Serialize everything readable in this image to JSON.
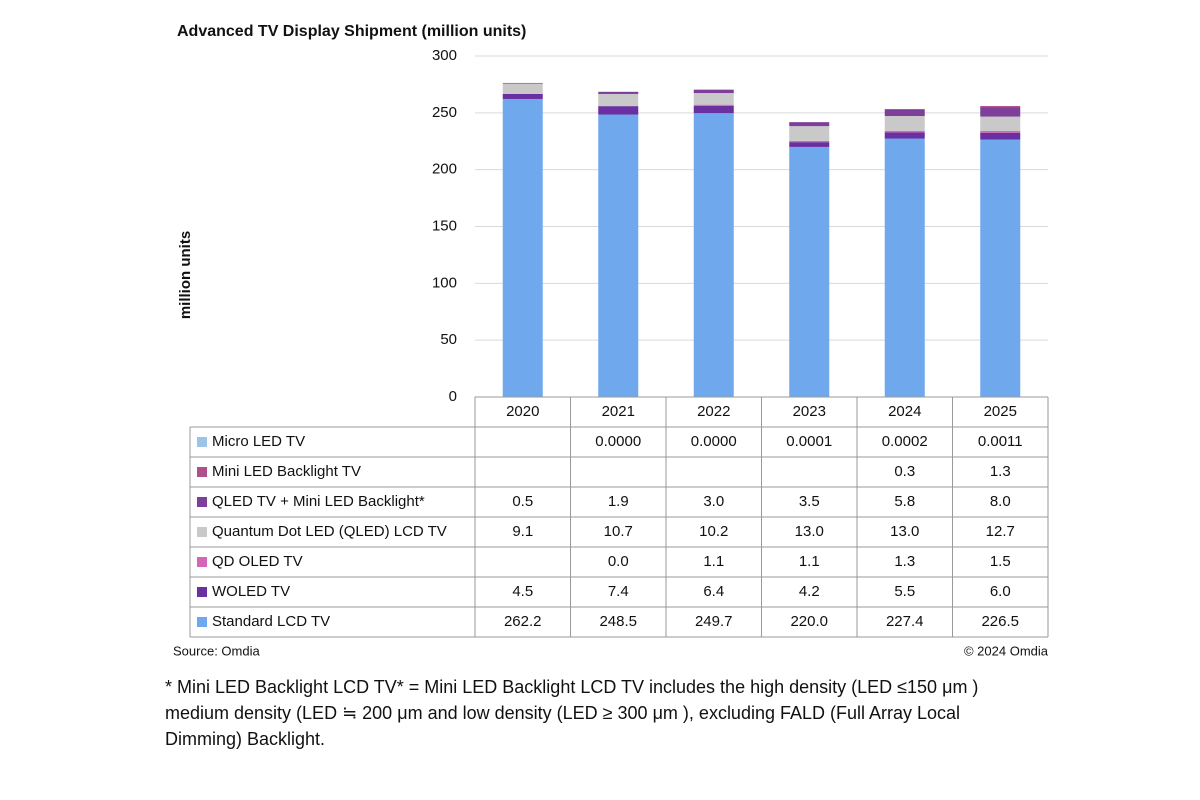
{
  "chart_data": {
    "type": "stacked-bar-table",
    "title": "Advanced TV Display Shipment (million units)",
    "y_label": "million  units",
    "categories": [
      "2020",
      "2021",
      "2022",
      "2023",
      "2024",
      "2025"
    ],
    "ylim": [
      0,
      300
    ],
    "yticks": [
      0,
      50,
      100,
      150,
      200,
      250,
      300
    ],
    "grid": true,
    "series": [
      {
        "name": "Standard LCD TV",
        "color": "#6fa8ec",
        "values": [
          262.2,
          248.5,
          249.7,
          220.0,
          227.4,
          226.5
        ],
        "value_labels": [
          "262.2",
          "248.5",
          "249.7",
          "220.0",
          "227.4",
          "226.5"
        ]
      },
      {
        "name": "WOLED TV",
        "color": "#6a2fa0",
        "values": [
          4.5,
          7.4,
          6.4,
          4.2,
          5.5,
          6.0
        ],
        "value_labels": [
          "4.5",
          "7.4",
          "6.4",
          "4.2",
          "5.5",
          "6.0"
        ]
      },
      {
        "name": "QD OLED TV",
        "color": "#d466b8",
        "values": [
          null,
          0,
          1.1,
          1.1,
          1.3,
          1.5
        ],
        "value_labels": [
          null,
          "0.0",
          "1.1",
          "1.1",
          "1.3",
          "1.5"
        ]
      },
      {
        "name": "Quantum Dot LED (QLED) LCD TV",
        "color": "#c9c9c9",
        "values": [
          9.1,
          10.7,
          10.2,
          13.0,
          13.0,
          12.7
        ],
        "value_labels": [
          "9.1",
          "10.7",
          "10.2",
          "13.0",
          "13.0",
          "12.7"
        ]
      },
      {
        "name": "QLED TV + Mini LED Backlight*",
        "color": "#7d3f9a",
        "values": [
          0.5,
          1.9,
          3.0,
          3.5,
          5.8,
          8.0
        ],
        "value_labels": [
          "0.5",
          "1.9",
          "3.0",
          "3.5",
          "5.8",
          "8.0"
        ]
      },
      {
        "name": "Mini LED Backlight TV",
        "color": "#b0508a",
        "values": [
          null,
          null,
          null,
          null,
          0.3,
          1.3
        ],
        "value_labels": [
          null,
          null,
          null,
          null,
          "0.3",
          "1.3"
        ]
      },
      {
        "name": "Micro LED TV",
        "color": "#9dc3e6",
        "values": [
          null,
          0,
          0,
          0.0001,
          0.0002,
          0.0011
        ],
        "value_labels": [
          null,
          "0.0000",
          "0.0000",
          "0.0001",
          "0.0002",
          "0.0011"
        ]
      }
    ],
    "source": "Source: Omdia",
    "copyright": "© 2024 Omdia",
    "footnote": "* Mini LED Backlight LCD TV* = Mini LED Backlight LCD TV includes the high density (LED ≤150 μm ) medium density (LED ≒ 200 μm and low density (LED ≥ 300 μm ), excluding FALD (Full Array Local Dimming) Backlight."
  }
}
